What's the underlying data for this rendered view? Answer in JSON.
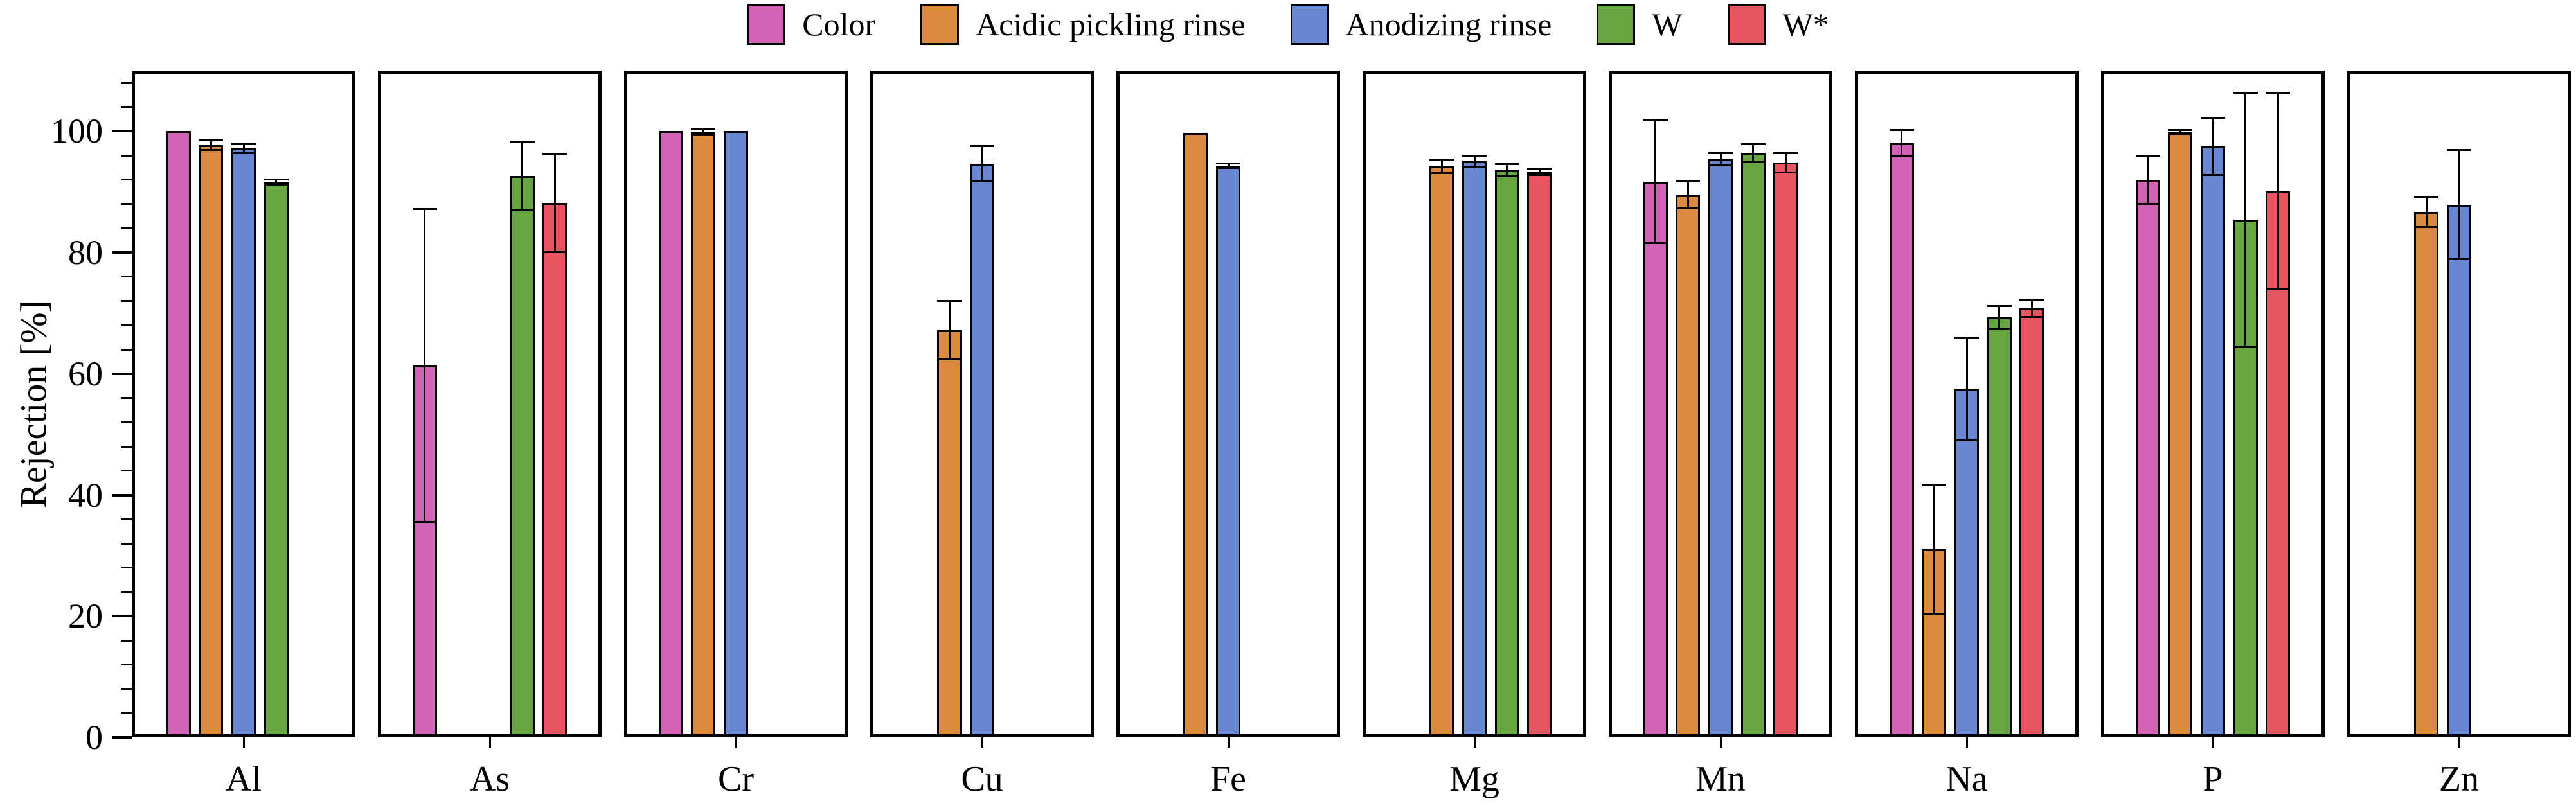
{
  "axis": {
    "y_label": "Rejection [%]",
    "y_min": 0,
    "y_max": 110,
    "y_major_ticks": [
      0,
      20,
      40,
      60,
      80,
      100
    ],
    "y_minor_step": 4,
    "grid": false
  },
  "chart_data": {
    "type": "bar",
    "title": "",
    "xlabel": "",
    "ylabel": "Rejection [%]",
    "ylim": [
      0,
      110
    ],
    "legend_position": "top-center",
    "categories": [
      "Al",
      "As",
      "Cr",
      "Cu",
      "Fe",
      "Mg",
      "Mn",
      "Na",
      "P",
      "Zn"
    ],
    "series": [
      {
        "name": "Color",
        "color": "#d164b6",
        "values": [
          100,
          61.4,
          100,
          null,
          null,
          null,
          91.7,
          98.0,
          92.0,
          null
        ],
        "errors": [
          0,
          25.8,
          0,
          null,
          null,
          null,
          10.2,
          2.2,
          4.0,
          null
        ]
      },
      {
        "name": "Acidic pickling rinse",
        "color": "#dc8a3d",
        "values": [
          97.7,
          null,
          99.9,
          67.2,
          99.7,
          94.2,
          89.5,
          31.0,
          99.9,
          86.7
        ],
        "errors": [
          0.8,
          null,
          0.4,
          4.8,
          0,
          1.1,
          2.2,
          10.7,
          0.3,
          2.5
        ]
      },
      {
        "name": "Anodizing rinse",
        "color": "#6787d2",
        "values": [
          97.2,
          null,
          100,
          94.6,
          94.3,
          95.1,
          95.4,
          57.5,
          97.5,
          87.9
        ],
        "errors": [
          0.8,
          null,
          0,
          2.9,
          0.4,
          0.9,
          1.0,
          8.5,
          4.7,
          9.0
        ]
      },
      {
        "name": "W",
        "color": "#67a73f",
        "values": [
          91.6,
          92.6,
          null,
          null,
          null,
          93.6,
          96.4,
          69.3,
          85.4,
          null
        ],
        "errors": [
          0.4,
          5.6,
          null,
          null,
          null,
          1.0,
          1.5,
          1.9,
          20.9,
          null
        ]
      },
      {
        "name": "W*",
        "color": "#e75560",
        "values": [
          null,
          88.2,
          null,
          null,
          null,
          93.3,
          94.8,
          70.8,
          90.1,
          null
        ],
        "errors": [
          null,
          8.1,
          null,
          null,
          null,
          0.5,
          1.6,
          1.4,
          16.2,
          null
        ]
      }
    ]
  }
}
